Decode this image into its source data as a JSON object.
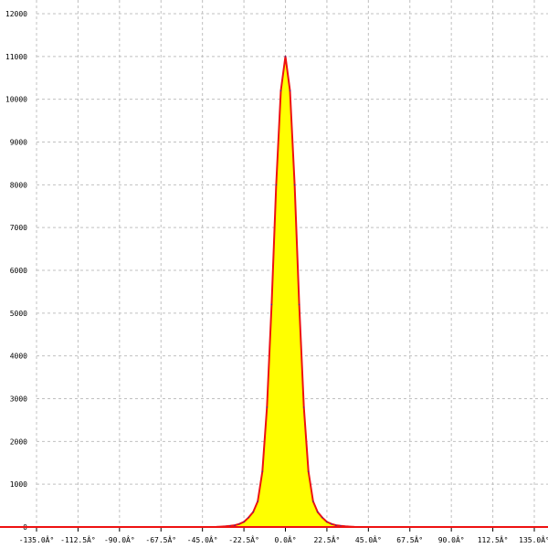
{
  "chart_data": {
    "type": "area",
    "title": "",
    "xlabel": "",
    "ylabel": "",
    "xlim": [
      -135,
      135
    ],
    "ylim": [
      0,
      12000
    ],
    "grid": true,
    "x_ticks": [
      -135,
      -112.5,
      -90,
      -67.5,
      -45,
      -22.5,
      0,
      22.5,
      45,
      67.5,
      90,
      112.5,
      135
    ],
    "x_tick_labels": [
      "-135.0Â°",
      "-112.5Â°",
      "-90.0Â°",
      "-67.5Â°",
      "-45.0Â°",
      "-22.5Â°",
      "0.0Â°",
      "22.5Â°",
      "45.0Â°",
      "67.5Â°",
      "90.0Â°",
      "112.5Â°",
      "135.0Â°"
    ],
    "y_ticks": [
      0,
      1000,
      2000,
      3000,
      4000,
      5000,
      6000,
      7000,
      8000,
      9000,
      10000,
      11000,
      12000
    ],
    "y_tick_labels": [
      "0",
      "1000",
      "2000",
      "3000",
      "4000",
      "5000",
      "6000",
      "7000",
      "8000",
      "9000",
      "10000",
      "11000",
      "12000"
    ],
    "series": [
      {
        "x": [
          -40,
          -37.5,
          -35,
          -32.5,
          -30,
          -27.5,
          -25,
          -22.5,
          -20,
          -17.5,
          -15,
          -12.5,
          -10,
          -7.5,
          -5,
          -2.5,
          0,
          2.5,
          5,
          7.5,
          10,
          12.5,
          15,
          17.5,
          20,
          22.5,
          25,
          27.5,
          30,
          32.5,
          35,
          37.5,
          40
        ],
        "y": [
          0,
          3,
          8,
          15,
          25,
          40,
          70,
          120,
          220,
          350,
          600,
          1300,
          2800,
          5200,
          8000,
          10200,
          11000,
          10200,
          8000,
          5200,
          2800,
          1300,
          600,
          350,
          220,
          120,
          70,
          40,
          25,
          15,
          8,
          3,
          0
        ]
      }
    ],
    "colors": {
      "fill": "#ffff00",
      "line": "#ee1111",
      "baseline": "#ee1111",
      "grid": "#c0c0c0"
    }
  }
}
